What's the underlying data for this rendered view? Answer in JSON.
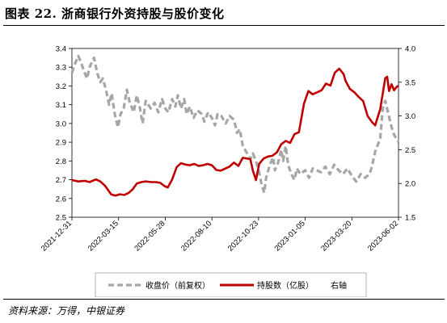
{
  "figure": {
    "title": "图表 22. 浙商银行外资持股与股价变化",
    "source": "资料来源：万得，中银证券"
  },
  "chart_data": {
    "type": "line",
    "x_tick_labels": [
      "2021-12-31",
      "2022-03-15",
      "2022-05-28",
      "2022-08-10",
      "2022-10-23",
      "2023-01-05",
      "2023-03-20",
      "2023-06-02"
    ],
    "x_range": [
      "2021-12-31",
      "2023-06-02"
    ],
    "left_axis": {
      "min": 2.5,
      "max": 3.4,
      "step": 0.1,
      "tick_labels": [
        "2.5",
        "2.6",
        "2.7",
        "2.8",
        "2.9",
        "3.0",
        "3.1",
        "3.2",
        "3.3",
        "3.4"
      ]
    },
    "right_axis": {
      "min": 1.5,
      "max": 4.0,
      "step": 0.5,
      "tick_labels": [
        "1.5",
        "2.0",
        "2.5",
        "3.0",
        "3.5",
        "4.0"
      ]
    },
    "grid": false,
    "legend_position": "bottom",
    "legend_extra": "右轴",
    "series": [
      {
        "name": "收盘价（前复权）",
        "axis": "left",
        "style": "dashed",
        "color": "#a6a6a6",
        "points": [
          [
            "2021-12-31",
            3.27
          ],
          [
            "2022-01-05",
            3.32
          ],
          [
            "2022-01-10",
            3.36
          ],
          [
            "2022-01-14",
            3.33
          ],
          [
            "2022-01-19",
            3.28
          ],
          [
            "2022-01-24",
            3.24
          ],
          [
            "2022-01-28",
            3.3
          ],
          [
            "2022-02-04",
            3.35
          ],
          [
            "2022-02-09",
            3.27
          ],
          [
            "2022-02-14",
            3.22
          ],
          [
            "2022-02-18",
            3.24
          ],
          [
            "2022-02-23",
            3.18
          ],
          [
            "2022-02-28",
            3.1
          ],
          [
            "2022-03-04",
            3.16
          ],
          [
            "2022-03-09",
            3.05
          ],
          [
            "2022-03-14",
            2.98
          ],
          [
            "2022-03-18",
            3.05
          ],
          [
            "2022-03-23",
            3.08
          ],
          [
            "2022-03-28",
            3.18
          ],
          [
            "2022-04-01",
            3.12
          ],
          [
            "2022-04-08",
            3.06
          ],
          [
            "2022-04-13",
            3.15
          ],
          [
            "2022-04-18",
            3.08
          ],
          [
            "2022-04-22",
            3.0
          ],
          [
            "2022-04-27",
            3.12
          ],
          [
            "2022-05-05",
            3.08
          ],
          [
            "2022-05-11",
            3.11
          ],
          [
            "2022-05-17",
            3.06
          ],
          [
            "2022-05-23",
            3.13
          ],
          [
            "2022-05-28",
            3.08
          ],
          [
            "2022-06-02",
            3.06
          ],
          [
            "2022-06-08",
            3.13
          ],
          [
            "2022-06-13",
            3.09
          ],
          [
            "2022-06-17",
            3.15
          ],
          [
            "2022-06-22",
            3.08
          ],
          [
            "2022-06-27",
            3.13
          ],
          [
            "2022-07-01",
            3.05
          ],
          [
            "2022-07-06",
            3.09
          ],
          [
            "2022-07-12",
            3.03
          ],
          [
            "2022-07-18",
            3.07
          ],
          [
            "2022-07-25",
            3.05
          ],
          [
            "2022-07-29",
            3.01
          ],
          [
            "2022-08-04",
            3.06
          ],
          [
            "2022-08-10",
            3.03
          ],
          [
            "2022-08-15",
            2.99
          ],
          [
            "2022-08-19",
            3.05
          ],
          [
            "2022-08-25",
            3.04
          ],
          [
            "2022-09-01",
            3.0
          ],
          [
            "2022-09-07",
            3.04
          ],
          [
            "2022-09-14",
            3.02
          ],
          [
            "2022-09-19",
            2.95
          ],
          [
            "2022-09-23",
            2.97
          ],
          [
            "2022-09-28",
            2.88
          ],
          [
            "2022-10-10",
            2.81
          ],
          [
            "2022-10-14",
            2.84
          ],
          [
            "2022-10-19",
            2.8
          ],
          [
            "2022-10-24",
            2.74
          ],
          [
            "2022-10-28",
            2.67
          ],
          [
            "2022-11-01",
            2.63
          ],
          [
            "2022-11-04",
            2.71
          ],
          [
            "2022-11-10",
            2.78
          ],
          [
            "2022-11-15",
            2.82
          ],
          [
            "2022-11-18",
            2.75
          ],
          [
            "2022-11-23",
            2.79
          ],
          [
            "2022-11-28",
            2.86
          ],
          [
            "2022-12-01",
            2.8
          ],
          [
            "2022-12-05",
            2.88
          ],
          [
            "2022-12-09",
            2.78
          ],
          [
            "2022-12-14",
            2.73
          ],
          [
            "2022-12-19",
            2.7
          ],
          [
            "2022-12-23",
            2.76
          ],
          [
            "2022-12-28",
            2.73
          ],
          [
            "2023-01-05",
            2.75
          ],
          [
            "2023-01-11",
            2.71
          ],
          [
            "2023-01-17",
            2.76
          ],
          [
            "2023-01-30",
            2.74
          ],
          [
            "2023-02-06",
            2.77
          ],
          [
            "2023-02-13",
            2.73
          ],
          [
            "2023-02-20",
            2.78
          ],
          [
            "2023-02-27",
            2.75
          ],
          [
            "2023-03-06",
            2.73
          ],
          [
            "2023-03-13",
            2.76
          ],
          [
            "2023-03-20",
            2.72
          ],
          [
            "2023-03-27",
            2.69
          ],
          [
            "2023-04-03",
            2.73
          ],
          [
            "2023-04-10",
            2.71
          ],
          [
            "2023-04-17",
            2.73
          ],
          [
            "2023-04-21",
            2.77
          ],
          [
            "2023-04-26",
            2.85
          ],
          [
            "2023-05-04",
            2.92
          ],
          [
            "2023-05-08",
            3.08
          ],
          [
            "2023-05-12",
            3.12
          ],
          [
            "2023-05-17",
            3.05
          ],
          [
            "2023-05-22",
            2.98
          ],
          [
            "2023-05-26",
            2.94
          ],
          [
            "2023-06-02",
            2.9
          ]
        ]
      },
      {
        "name": "持股数（亿股）",
        "axis": "right",
        "style": "solid",
        "color": "#c00000",
        "points": [
          [
            "2021-12-31",
            2.05
          ],
          [
            "2022-01-10",
            2.03
          ],
          [
            "2022-01-20",
            2.04
          ],
          [
            "2022-01-28",
            2.02
          ],
          [
            "2022-02-07",
            2.06
          ],
          [
            "2022-02-14",
            2.03
          ],
          [
            "2022-02-21",
            1.97
          ],
          [
            "2022-02-25",
            1.92
          ],
          [
            "2022-03-03",
            1.84
          ],
          [
            "2022-03-10",
            1.82
          ],
          [
            "2022-03-17",
            1.84
          ],
          [
            "2022-03-24",
            1.83
          ],
          [
            "2022-03-31",
            1.86
          ],
          [
            "2022-04-06",
            1.91
          ],
          [
            "2022-04-13",
            2.0
          ],
          [
            "2022-04-20",
            2.02
          ],
          [
            "2022-04-27",
            2.03
          ],
          [
            "2022-05-06",
            2.02
          ],
          [
            "2022-05-13",
            2.02
          ],
          [
            "2022-05-20",
            2.01
          ],
          [
            "2022-05-27",
            1.96
          ],
          [
            "2022-06-01",
            1.94
          ],
          [
            "2022-06-08",
            2.06
          ],
          [
            "2022-06-15",
            2.24
          ],
          [
            "2022-06-22",
            2.3
          ],
          [
            "2022-06-29",
            2.28
          ],
          [
            "2022-07-06",
            2.27
          ],
          [
            "2022-07-13",
            2.29
          ],
          [
            "2022-07-20",
            2.26
          ],
          [
            "2022-07-27",
            2.27
          ],
          [
            "2022-08-03",
            2.29
          ],
          [
            "2022-08-10",
            2.27
          ],
          [
            "2022-08-17",
            2.2
          ],
          [
            "2022-08-24",
            2.19
          ],
          [
            "2022-08-31",
            2.22
          ],
          [
            "2022-09-07",
            2.25
          ],
          [
            "2022-09-14",
            2.31
          ],
          [
            "2022-09-21",
            2.26
          ],
          [
            "2022-09-28",
            2.38
          ],
          [
            "2022-10-10",
            2.36
          ],
          [
            "2022-10-14",
            2.19
          ],
          [
            "2022-10-19",
            2.05
          ],
          [
            "2022-10-24",
            2.29
          ],
          [
            "2022-10-31",
            2.37
          ],
          [
            "2022-11-07",
            2.4
          ],
          [
            "2022-11-14",
            2.41
          ],
          [
            "2022-11-21",
            2.46
          ],
          [
            "2022-11-28",
            2.58
          ],
          [
            "2022-12-05",
            2.63
          ],
          [
            "2022-12-12",
            2.6
          ],
          [
            "2022-12-19",
            2.73
          ],
          [
            "2022-12-26",
            2.76
          ],
          [
            "2023-01-03",
            3.18
          ],
          [
            "2023-01-10",
            3.37
          ],
          [
            "2023-01-17",
            3.32
          ],
          [
            "2023-01-31",
            3.38
          ],
          [
            "2023-02-07",
            3.48
          ],
          [
            "2023-02-14",
            3.45
          ],
          [
            "2023-02-21",
            3.64
          ],
          [
            "2023-02-28",
            3.7
          ],
          [
            "2023-03-07",
            3.62
          ],
          [
            "2023-03-10",
            3.52
          ],
          [
            "2023-03-17",
            3.4
          ],
          [
            "2023-03-24",
            3.35
          ],
          [
            "2023-03-31",
            3.28
          ],
          [
            "2023-04-07",
            3.22
          ],
          [
            "2023-04-14",
            3.0
          ],
          [
            "2023-04-21",
            2.91
          ],
          [
            "2023-04-26",
            2.86
          ],
          [
            "2023-05-04",
            3.1
          ],
          [
            "2023-05-09",
            3.39
          ],
          [
            "2023-05-12",
            3.56
          ],
          [
            "2023-05-15",
            3.58
          ],
          [
            "2023-05-18",
            3.37
          ],
          [
            "2023-05-22",
            3.47
          ],
          [
            "2023-05-26",
            3.38
          ],
          [
            "2023-05-30",
            3.43
          ],
          [
            "2023-06-02",
            3.45
          ]
        ]
      }
    ]
  }
}
